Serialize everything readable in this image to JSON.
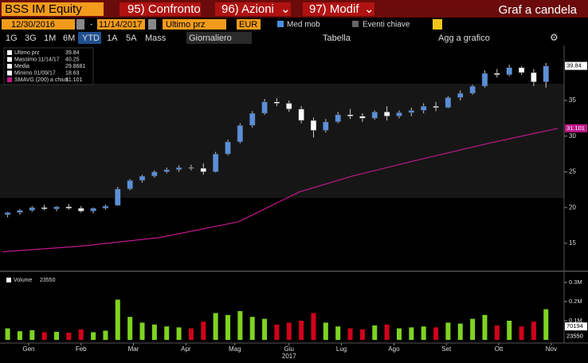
{
  "toolbar": {
    "security": "BSS IM Equity",
    "compare": "95) Confronto",
    "actions": "96) Azioni",
    "modify": "97) Modif",
    "chart_title": "Graf a candela",
    "start_date": "12/30/2016",
    "dash": "-",
    "end_date": "11/14/2017",
    "field": "Ultimo prz",
    "currency": "EUR",
    "moving_avg": "Med mob",
    "key_events": "Eventi chiave",
    "periods": [
      "1G",
      "3G",
      "1M",
      "6M",
      "YTD",
      "1A",
      "5A",
      "Mass"
    ],
    "frequency": "Giornaliero",
    "table": "Tabella",
    "add": "Agg a grafico"
  },
  "legend": [
    {
      "label": "Ultimo prz",
      "value": 39.84
    },
    {
      "label": "Massimo 11/14/17",
      "value": 40.25
    },
    {
      "label": "Media",
      "value": 29.8681
    },
    {
      "label": "Minimo 01/09/17",
      "value": 18.63
    },
    {
      "label": "SMAVG (200) a chius",
      "value": 31.101
    }
  ],
  "chart_data": {
    "type": "candlestick",
    "xlim": [
      0,
      320
    ],
    "ylim": [
      11.3,
      42.7
    ],
    "yticks": [
      15,
      20,
      25,
      30,
      35
    ],
    "xticks": [
      {
        "value": 15,
        "label": "Gen"
      },
      {
        "value": 45,
        "label": "Feb"
      },
      {
        "value": 75,
        "label": "Mar"
      },
      {
        "value": 105,
        "label": "Apr"
      },
      {
        "value": 133,
        "label": "Mag"
      },
      {
        "value": 164,
        "label": "Giu"
      },
      {
        "value": 194,
        "label": "Lug"
      },
      {
        "value": 224,
        "label": "Ago"
      },
      {
        "value": 254,
        "label": "Set"
      },
      {
        "value": 284,
        "label": "Ott"
      },
      {
        "value": 314,
        "label": "Nov"
      }
    ],
    "year_label": "2017",
    "up_color": "#5b8fd8",
    "down_color": "#ffffff",
    "x": [
      3,
      10,
      17,
      24,
      31,
      38,
      45,
      52,
      59,
      66,
      73,
      80,
      87,
      94,
      101,
      108,
      115,
      122,
      129,
      136,
      143,
      150,
      157,
      164,
      171,
      178,
      185,
      192,
      199,
      206,
      213,
      220,
      227,
      234,
      241,
      248,
      255,
      262,
      269,
      276,
      283,
      290,
      297,
      304,
      311
    ],
    "open": [
      19.0,
      19.3,
      19.6,
      20.0,
      19.8,
      20.1,
      19.9,
      19.5,
      19.9,
      20.3,
      22.6,
      23.8,
      24.4,
      25.0,
      25.3,
      25.6,
      25.5,
      25.0,
      27.5,
      29.2,
      31.5,
      33.2,
      34.8,
      34.6,
      33.8,
      32.2,
      30.8,
      32.0,
      33.0,
      32.8,
      32.5,
      33.4,
      32.8,
      33.3,
      33.6,
      34.2,
      34.0,
      35.4,
      36.0,
      37.0,
      38.8,
      38.6,
      39.6,
      38.9,
      37.6
    ],
    "high": [
      19.4,
      19.8,
      20.2,
      20.4,
      20.2,
      20.5,
      20.2,
      20.0,
      20.4,
      22.9,
      24.0,
      24.6,
      25.2,
      25.6,
      25.9,
      26.0,
      26.2,
      27.8,
      29.5,
      31.8,
      33.5,
      35.2,
      35.3,
      35.0,
      34.2,
      32.6,
      32.4,
      33.4,
      33.8,
      33.2,
      33.6,
      34.2,
      33.6,
      34.0,
      34.6,
      34.8,
      35.6,
      36.4,
      37.2,
      39.2,
      39.4,
      40.0,
      39.8,
      39.4,
      40.25
    ],
    "low": [
      18.63,
      19.0,
      19.4,
      19.6,
      19.5,
      19.7,
      19.3,
      19.2,
      19.7,
      20.2,
      22.4,
      23.5,
      24.2,
      24.8,
      25.0,
      25.2,
      24.6,
      24.9,
      27.3,
      29.0,
      31.2,
      33.0,
      34.2,
      33.4,
      31.8,
      29.8,
      30.5,
      31.8,
      32.4,
      32.0,
      32.3,
      32.2,
      32.5,
      32.8,
      33.2,
      33.5,
      33.9,
      35.0,
      35.8,
      36.8,
      38.2,
      38.4,
      38.6,
      37.0,
      36.8
    ],
    "close": [
      19.3,
      19.6,
      20.0,
      19.8,
      20.1,
      19.9,
      19.5,
      19.9,
      20.2,
      22.6,
      23.8,
      24.4,
      25.0,
      25.3,
      25.6,
      25.5,
      25.0,
      27.5,
      29.2,
      31.5,
      33.2,
      34.8,
      34.6,
      33.8,
      32.2,
      30.8,
      32.0,
      33.0,
      32.8,
      32.5,
      33.4,
      32.8,
      33.3,
      33.6,
      34.2,
      34.0,
      35.4,
      36.0,
      37.0,
      38.8,
      38.6,
      39.6,
      38.9,
      37.6,
      39.84
    ],
    "sma": {
      "color": "#c0188a",
      "x": [
        0,
        45,
        90,
        135,
        170,
        200,
        240,
        280,
        318
      ],
      "values": [
        13.8,
        14.6,
        15.8,
        18.0,
        22.2,
        24.4,
        26.8,
        29.1,
        31.101
      ]
    },
    "volume": {
      "legend": "Volume",
      "last": 23550,
      "average": 70194,
      "ylim": [
        0,
        350000
      ],
      "yticks": [
        {
          "value": 100000,
          "label": "0.1M"
        },
        {
          "value": 200000,
          "label": "0.2M"
        },
        {
          "value": 300000,
          "label": "0.3M"
        }
      ],
      "up_color": "#7ed321",
      "down_color": "#d0021b",
      "values": [
        60000,
        45000,
        50000,
        40000,
        42000,
        38000,
        55000,
        40000,
        48000,
        210000,
        120000,
        90000,
        80000,
        70000,
        65000,
        60000,
        95000,
        140000,
        130000,
        150000,
        120000,
        110000,
        80000,
        90000,
        100000,
        140000,
        90000,
        70000,
        60000,
        55000,
        75000,
        80000,
        60000,
        65000,
        70000,
        65000,
        90000,
        85000,
        110000,
        130000,
        75000,
        100000,
        70000,
        95000,
        160000
      ]
    }
  }
}
